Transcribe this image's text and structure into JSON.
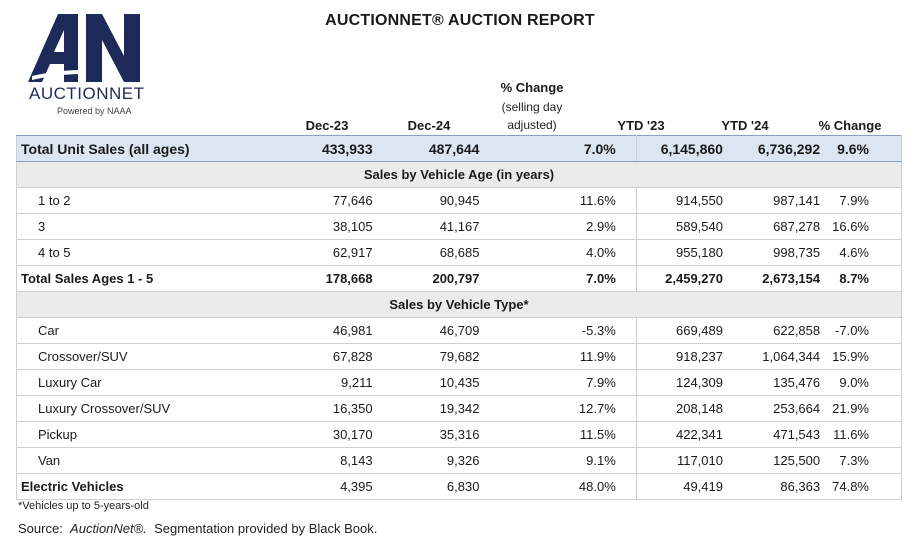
{
  "logo": {
    "wordmark": "AUCTIONNET",
    "tagline": "Powered by NAAA",
    "brand_color": "#1e2a5a"
  },
  "title": "AUCTIONNET® AUCTION REPORT",
  "headers": {
    "dec23": "Dec-23",
    "dec24": "Dec-24",
    "pct_change_line1": "% Change",
    "pct_change_line2": "(selling day",
    "pct_change_line3": "adjusted)",
    "ytd23": "YTD '23",
    "ytd24": "YTD '24",
    "ytd_pct_change": "% Change"
  },
  "rows": {
    "total": {
      "label": "Total Unit Sales (all ages)",
      "dec23": "433,933",
      "dec24": "487,644",
      "pct": "7.0%",
      "ytd23": "6,145,860",
      "ytd24": "6,736,292",
      "ytd_pct": "9.6%"
    },
    "age_section": "Sales by Vehicle Age (in years)",
    "age": [
      {
        "label": "1 to 2",
        "dec23": "77,646",
        "dec24": "90,945",
        "pct": "11.6%",
        "ytd23": "914,550",
        "ytd24": "987,141",
        "ytd_pct": "7.9%"
      },
      {
        "label": "3",
        "dec23": "38,105",
        "dec24": "41,167",
        "pct": "2.9%",
        "ytd23": "589,540",
        "ytd24": "687,278",
        "ytd_pct": "16.6%"
      },
      {
        "label": "4 to 5",
        "dec23": "62,917",
        "dec24": "68,685",
        "pct": "4.0%",
        "ytd23": "955,180",
        "ytd24": "998,735",
        "ytd_pct": "4.6%"
      }
    ],
    "total_ages": {
      "label": "Total Sales Ages 1 - 5",
      "dec23": "178,668",
      "dec24": "200,797",
      "pct": "7.0%",
      "ytd23": "2,459,270",
      "ytd24": "2,673,154",
      "ytd_pct": "8.7%"
    },
    "type_section": "Sales by Vehicle Type*",
    "type": [
      {
        "label": "Car",
        "dec23": "46,981",
        "dec24": "46,709",
        "pct": "-5.3%",
        "ytd23": "669,489",
        "ytd24": "622,858",
        "ytd_pct": "-7.0%"
      },
      {
        "label": "Crossover/SUV",
        "dec23": "67,828",
        "dec24": "79,682",
        "pct": "11.9%",
        "ytd23": "918,237",
        "ytd24": "1,064,344",
        "ytd_pct": "15.9%"
      },
      {
        "label": "Luxury Car",
        "dec23": "9,211",
        "dec24": "10,435",
        "pct": "7.9%",
        "ytd23": "124,309",
        "ytd24": "135,476",
        "ytd_pct": "9.0%"
      },
      {
        "label": "Luxury Crossover/SUV",
        "dec23": "16,350",
        "dec24": "19,342",
        "pct": "12.7%",
        "ytd23": "208,148",
        "ytd24": "253,664",
        "ytd_pct": "21.9%"
      },
      {
        "label": "Pickup",
        "dec23": "30,170",
        "dec24": "35,316",
        "pct": "11.5%",
        "ytd23": "422,341",
        "ytd24": "471,543",
        "ytd_pct": "11.6%"
      },
      {
        "label": "Van",
        "dec23": "8,143",
        "dec24": "9,326",
        "pct": "9.1%",
        "ytd23": "117,010",
        "ytd24": "125,500",
        "ytd_pct": "7.3%"
      }
    ],
    "ev": {
      "label": "Electric Vehicles",
      "dec23": "4,395",
      "dec24": "6,830",
      "pct": "48.0%",
      "ytd23": "49,419",
      "ytd24": "86,363",
      "ytd_pct": "74.8%"
    }
  },
  "footnote": "*Vehicles up to 5-years-old",
  "source": {
    "prefix": "Source:",
    "name": "AuctionNet®.",
    "suffix": "Segmentation provided by Black Book."
  },
  "colors": {
    "total_row_bg": "#dce6f2",
    "section_bg": "#ebebeb"
  }
}
